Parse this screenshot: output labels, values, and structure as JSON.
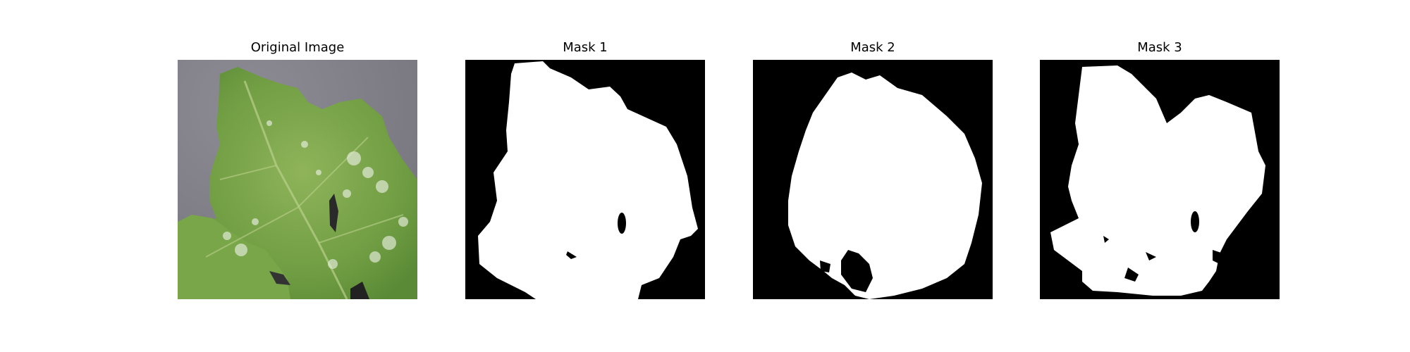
{
  "figure": {
    "panels": [
      {
        "id": "original",
        "title": "Original Image",
        "kind": "photo",
        "subject": "leaf-with-white-spots"
      },
      {
        "id": "mask1",
        "title": "Mask 1",
        "kind": "binary-mask"
      },
      {
        "id": "mask2",
        "title": "Mask 2",
        "kind": "binary-mask"
      },
      {
        "id": "mask3",
        "title": "Mask 3",
        "kind": "binary-mask"
      }
    ]
  },
  "colors": {
    "background": "#ffffff",
    "mask_background": "#000000",
    "mask_foreground": "#ffffff",
    "leaf_green": "#7aa64a",
    "backdrop_grey": "#86858d"
  }
}
